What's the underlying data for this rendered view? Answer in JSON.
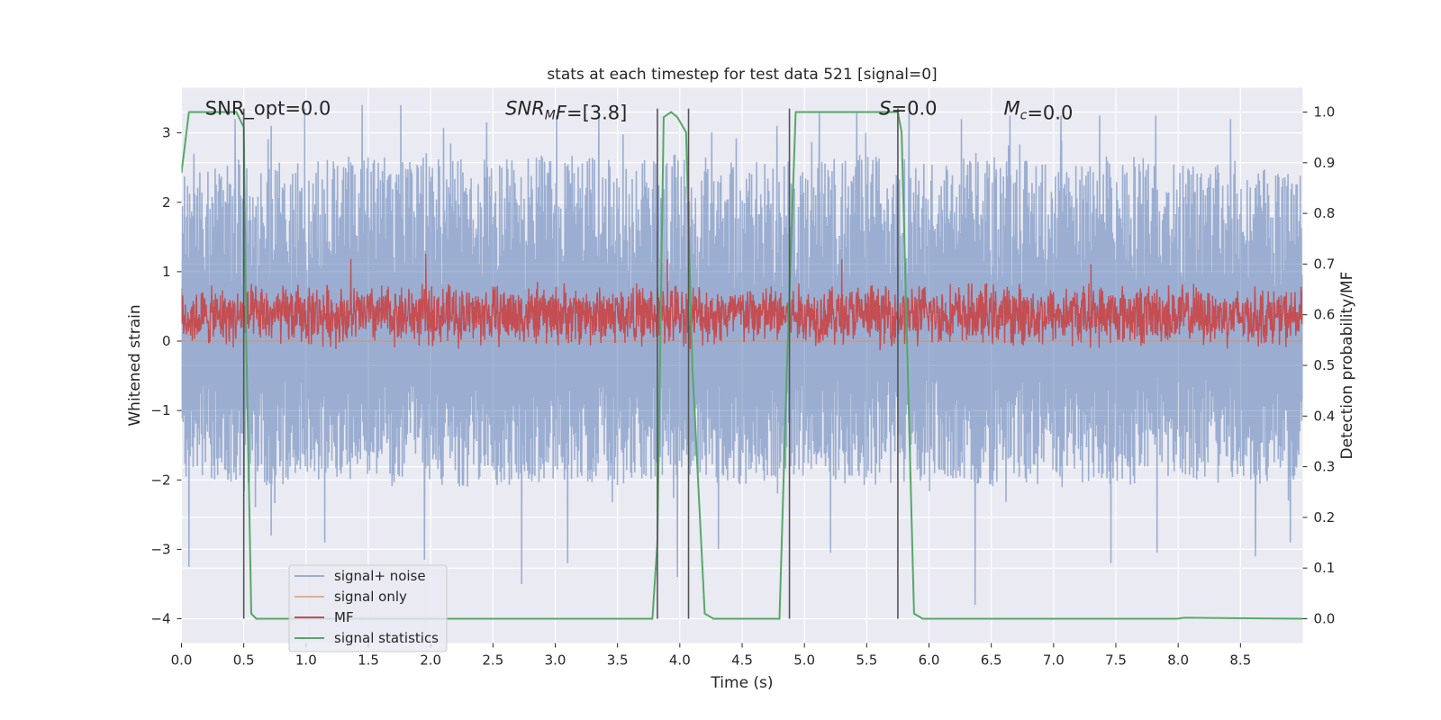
{
  "chart_data": {
    "type": "line",
    "title": "stats at each timestep for test data 521 [signal=0]",
    "xlabel": "Time (s)",
    "ylabel": "Whitened strain",
    "y2label": "Detection probability/MF",
    "xlim": [
      0.0,
      9.0
    ],
    "ylim": [
      -4.35,
      3.65
    ],
    "y2lim": [
      -0.048,
      1.048
    ],
    "xticks": [
      "0.0",
      "0.5",
      "1.0",
      "1.5",
      "2.0",
      "2.5",
      "3.0",
      "3.5",
      "4.0",
      "4.5",
      "5.0",
      "5.5",
      "6.0",
      "6.5",
      "7.0",
      "7.5",
      "8.0",
      "8.5"
    ],
    "yticks": [
      "3",
      "2",
      "1",
      "0",
      "−1",
      "−2",
      "−3",
      "−4"
    ],
    "y2ticks": [
      "1.0",
      "0.9",
      "0.8",
      "0.7",
      "0.6",
      "0.5",
      "0.4",
      "0.3",
      "0.2",
      "0.1",
      "0.0"
    ],
    "grid": true,
    "legend_position": "lower-left",
    "annotations": [
      {
        "parts": [
          {
            "t": "SNR_opt=0.0",
            "i": false
          }
        ],
        "x": 0.19,
        "y": 3.35
      },
      {
        "parts": [
          {
            "t": "SNR",
            "i": true
          },
          {
            "t": "M",
            "i": true,
            "sub": true
          },
          {
            "t": "F",
            "i": true
          },
          {
            "t": "=[3.8]",
            "i": false
          }
        ],
        "x": 2.6,
        "y": 3.35
      },
      {
        "parts": [
          {
            "t": "S",
            "i": true
          },
          {
            "t": "=0.0",
            "i": false
          }
        ],
        "x": 5.6,
        "y": 3.35
      },
      {
        "parts": [
          {
            "t": "M",
            "i": true
          },
          {
            "t": "c",
            "i": true,
            "sub": true
          },
          {
            "t": "=0.0",
            "i": false
          }
        ],
        "x": 6.6,
        "y": 3.35
      }
    ],
    "series": [
      {
        "name": "signal+ noise",
        "color": "#4c72b0",
        "opacity": 0.5,
        "kind": "noise",
        "envelope": [
          [
            0.0,
            2.4,
            -1.9
          ],
          [
            0.5,
            2.6,
            -2.2
          ],
          [
            1.0,
            2.6,
            -2.0
          ],
          [
            1.5,
            2.7,
            -2.0
          ],
          [
            2.0,
            2.7,
            -2.1
          ],
          [
            2.5,
            2.6,
            -2.2
          ],
          [
            3.0,
            2.7,
            -2.0
          ],
          [
            3.5,
            2.6,
            -2.1
          ],
          [
            4.0,
            2.7,
            -2.0
          ],
          [
            4.5,
            2.6,
            -2.1
          ],
          [
            5.0,
            2.6,
            -2.0
          ],
          [
            5.5,
            2.7,
            -2.1
          ],
          [
            6.0,
            2.6,
            -2.0
          ],
          [
            6.5,
            2.7,
            -2.1
          ],
          [
            7.0,
            2.6,
            -2.0
          ],
          [
            7.5,
            2.7,
            -2.1
          ],
          [
            8.0,
            2.6,
            -2.0
          ],
          [
            8.5,
            2.6,
            -2.1
          ],
          [
            9.0,
            2.4,
            -2.0
          ]
        ],
        "peaks_up": [
          [
            0.1,
            2.7
          ],
          [
            0.43,
            3.2
          ],
          [
            0.72,
            3.1
          ],
          [
            0.99,
            3.35
          ],
          [
            1.45,
            3.4
          ],
          [
            1.76,
            3.4
          ],
          [
            2.45,
            3.15
          ],
          [
            3.01,
            3.25
          ],
          [
            3.35,
            3.25
          ],
          [
            3.96,
            2.55
          ],
          [
            4.78,
            3.1
          ],
          [
            5.12,
            3.3
          ],
          [
            5.42,
            3.3
          ],
          [
            5.84,
            3.3
          ],
          [
            6.26,
            3.2
          ],
          [
            6.65,
            3.25
          ],
          [
            7.06,
            3.25
          ],
          [
            7.37,
            3.25
          ],
          [
            7.82,
            3.25
          ],
          [
            8.42,
            3.2
          ]
        ],
        "peaks_down": [
          [
            0.06,
            -3.25
          ],
          [
            0.72,
            -2.8
          ],
          [
            1.15,
            -2.9
          ],
          [
            1.95,
            -3.15
          ],
          [
            2.73,
            -3.5
          ],
          [
            3.1,
            -3.2
          ],
          [
            3.98,
            -3.4
          ],
          [
            4.31,
            -3.0
          ],
          [
            5.21,
            -3.05
          ],
          [
            6.37,
            -3.8
          ],
          [
            7.46,
            -3.2
          ],
          [
            7.83,
            -3.05
          ],
          [
            8.62,
            -3.1
          ],
          [
            8.9,
            -2.9
          ]
        ]
      },
      {
        "name": "signal only",
        "color": "#dd8452",
        "opacity": 0.6,
        "kind": "line",
        "x": [
          0.0,
          9.0
        ],
        "y": [
          0.0,
          0.0
        ]
      },
      {
        "name": "MF",
        "color": "#c44e52",
        "kind": "mf",
        "axis": "right",
        "envelope": [
          [
            0.0,
            0.66,
            0.53
          ],
          [
            1.0,
            0.67,
            0.53
          ],
          [
            2.0,
            0.67,
            0.53
          ],
          [
            3.0,
            0.67,
            0.53
          ],
          [
            4.0,
            0.67,
            0.53
          ],
          [
            5.0,
            0.67,
            0.53
          ],
          [
            6.0,
            0.67,
            0.53
          ],
          [
            7.0,
            0.67,
            0.53
          ],
          [
            8.0,
            0.67,
            0.53
          ],
          [
            9.0,
            0.66,
            0.53
          ]
        ],
        "peaks_up": [
          [
            1.36,
            0.71
          ],
          [
            1.96,
            0.72
          ],
          [
            3.9,
            0.71
          ],
          [
            5.3,
            0.71
          ],
          [
            7.3,
            0.7
          ]
        ]
      },
      {
        "name": "signal statistics",
        "color": "#55a868",
        "kind": "line",
        "axis": "right",
        "x": [
          0.0,
          0.06,
          0.44,
          0.5,
          0.52,
          0.56,
          0.6,
          3.78,
          3.82,
          3.87,
          3.93,
          3.98,
          4.05,
          4.1,
          4.2,
          4.27,
          4.8,
          4.86,
          4.93,
          5.75,
          5.78,
          5.88,
          5.95,
          7.99,
          8.05,
          9.0
        ],
        "y": [
          0.88,
          1.0,
          1.0,
          0.97,
          0.55,
          0.01,
          0.0,
          0.0,
          0.15,
          0.99,
          1.0,
          0.99,
          0.96,
          0.5,
          0.01,
          0.0,
          0.0,
          0.5,
          1.0,
          1.0,
          0.96,
          0.01,
          0.0,
          0.0,
          0.002,
          0.0
        ]
      }
    ],
    "vlines": [
      0.5,
      3.82,
      4.07,
      4.88,
      5.75
    ],
    "vline_color": "#555555",
    "vline_ymax": 3.35,
    "vline_ymin": -4.0,
    "background": "#eaeaf2",
    "gridcolor": "#ffffff"
  }
}
